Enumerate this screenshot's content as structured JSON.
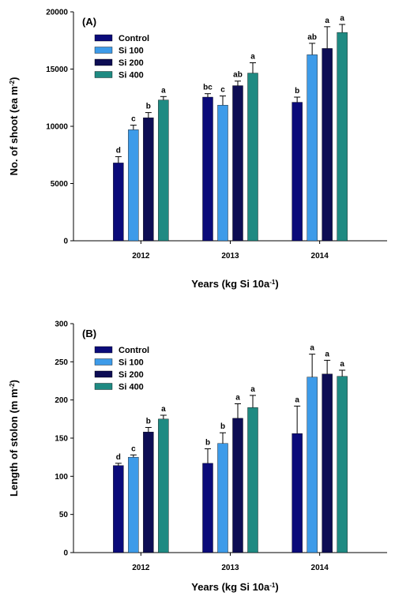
{
  "colors": {
    "Control": "#0b0b7a",
    "Si 100": "#3d9be9",
    "Si 200": "#0d0d54",
    "Si 400": "#1f8a82",
    "axis": "#000000",
    "error_bar": "#000000"
  },
  "chart_data": [
    {
      "type": "bar",
      "panel_label": "(A)",
      "categories": [
        "2012",
        "2013",
        "2014"
      ],
      "series": [
        {
          "name": "Control",
          "values": [
            6800,
            12550,
            12100
          ],
          "errors": [
            550,
            300,
            450
          ],
          "letters": [
            "d",
            "bc",
            "b"
          ]
        },
        {
          "name": "Si 100",
          "values": [
            9700,
            11850,
            16250
          ],
          "errors": [
            400,
            800,
            1000
          ],
          "letters": [
            "c",
            "c",
            "ab"
          ]
        },
        {
          "name": "Si 200",
          "values": [
            10750,
            13550,
            16800
          ],
          "errors": [
            450,
            400,
            1900
          ],
          "letters": [
            "b",
            "ab",
            "a"
          ]
        },
        {
          "name": "Si 400",
          "values": [
            12300,
            14650,
            18200
          ],
          "errors": [
            300,
            900,
            700
          ],
          "letters": [
            "a",
            "a",
            "a"
          ]
        }
      ],
      "xlabel": "Years (kg Si 10a-1)",
      "ylabel": "No. of shoot (ea m-2)",
      "ylim": [
        0,
        20000
      ],
      "yticks": [
        0,
        5000,
        10000,
        15000,
        20000
      ],
      "legend_position": "top-left",
      "grid": false
    },
    {
      "type": "bar",
      "panel_label": "(B)",
      "categories": [
        "2012",
        "2013",
        "2014"
      ],
      "series": [
        {
          "name": "Control",
          "values": [
            114,
            117,
            156
          ],
          "errors": [
            3,
            19,
            36
          ],
          "letters": [
            "d",
            "b",
            "a"
          ]
        },
        {
          "name": "Si 100",
          "values": [
            125,
            143,
            230
          ],
          "errors": [
            3,
            14,
            30
          ],
          "letters": [
            "c",
            "b",
            "a"
          ]
        },
        {
          "name": "Si 200",
          "values": [
            158,
            176,
            234
          ],
          "errors": [
            6,
            19,
            18
          ],
          "letters": [
            "b",
            "a",
            "a"
          ]
        },
        {
          "name": "Si 400",
          "values": [
            175,
            190,
            231
          ],
          "errors": [
            5,
            16,
            8
          ],
          "letters": [
            "a",
            "a",
            "a"
          ]
        }
      ],
      "xlabel": "Years (kg Si 10a-1)",
      "ylabel": "Length of stolon (m m-2)",
      "ylim": [
        0,
        300
      ],
      "yticks": [
        0,
        50,
        100,
        150,
        200,
        250,
        300
      ],
      "legend_position": "top-left",
      "grid": false
    }
  ]
}
